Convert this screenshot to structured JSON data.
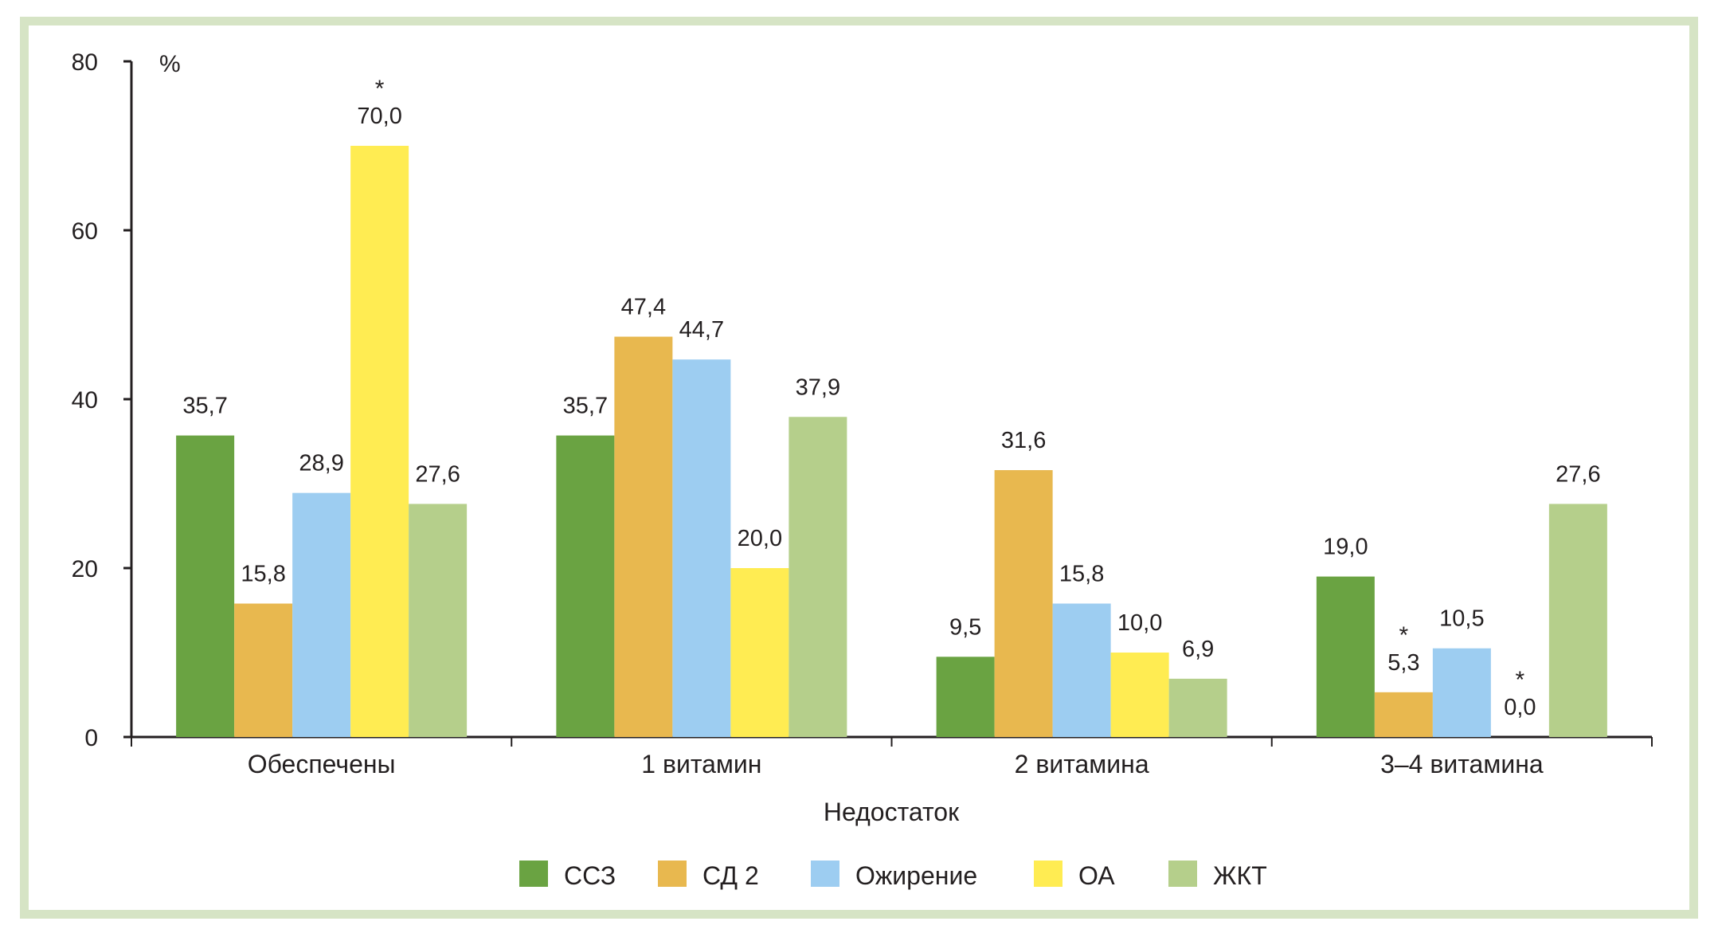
{
  "chart_data": {
    "type": "bar",
    "title": "",
    "xlabel": "Недостаток",
    "ylabel": "%",
    "ylim": [
      0,
      80
    ],
    "yticks": [
      "0",
      "20",
      "40",
      "60",
      "80"
    ],
    "grid": false,
    "legend_position": "bottom",
    "categories": [
      "Обеспечены",
      "1 витамин",
      "2 витамина",
      "3–4 витамина"
    ],
    "series": [
      {
        "name": "ССЗ",
        "color": "#6aa342",
        "values": [
          35.7,
          35.7,
          9.5,
          19.0
        ],
        "labels": [
          "35,7",
          "35,7",
          "9,5",
          "19,0"
        ],
        "stars": [
          false,
          false,
          false,
          false
        ]
      },
      {
        "name": "СД 2",
        "color": "#e8b84f",
        "values": [
          15.8,
          47.4,
          31.6,
          5.3
        ],
        "labels": [
          "15,8",
          "47,4",
          "31,6",
          "5,3"
        ],
        "stars": [
          false,
          false,
          false,
          true
        ]
      },
      {
        "name": "Ожирение",
        "color": "#9dcdf1",
        "values": [
          28.9,
          44.7,
          15.8,
          10.5
        ],
        "labels": [
          "28,9",
          "44,7",
          "15,8",
          "10,5"
        ],
        "stars": [
          false,
          false,
          false,
          false
        ]
      },
      {
        "name": "ОА",
        "color": "#ffec52",
        "values": [
          70.0,
          20.0,
          10.0,
          0.0
        ],
        "labels": [
          "70,0",
          "20,0",
          "10,0",
          "0,0"
        ],
        "stars": [
          true,
          false,
          false,
          true
        ]
      },
      {
        "name": "ЖКТ",
        "color": "#b5cf8b",
        "values": [
          27.6,
          37.9,
          6.9,
          27.6
        ],
        "labels": [
          "27,6",
          "37,9",
          "6,9",
          "27,6"
        ],
        "stars": [
          false,
          false,
          false,
          false
        ]
      }
    ],
    "annotation_symbol": "*"
  },
  "frame_color": "#d6e4c5"
}
